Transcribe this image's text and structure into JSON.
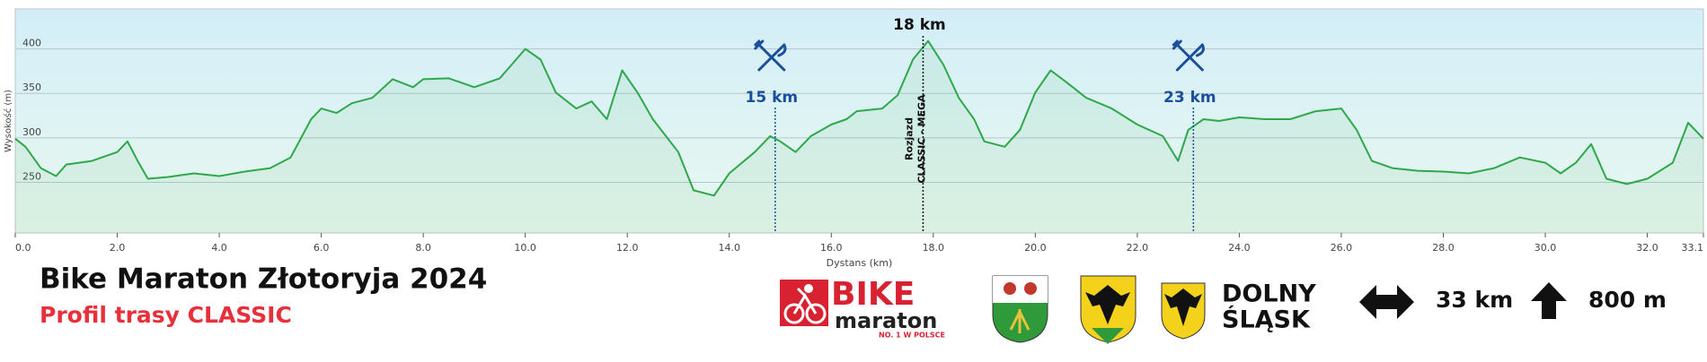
{
  "chart_data": {
    "type": "area",
    "title": "Bike Maraton Złotoryja 2024",
    "subtitle": "Profil trasy CLASSIC",
    "xlabel": "Dystans (km)",
    "ylabel": "Wysokość (m)",
    "color": "#2ea84a",
    "grid": true,
    "xlim": [
      0,
      33.1
    ],
    "ylim": [
      193,
      445
    ],
    "yticks": [
      250,
      300,
      350,
      400
    ],
    "xticks": [
      {
        "value": 0,
        "label": "0.0"
      },
      {
        "value": 2,
        "label": "2.0"
      },
      {
        "value": 4,
        "label": "4.0"
      },
      {
        "value": 6,
        "label": "6.0"
      },
      {
        "value": 8,
        "label": "8.0"
      },
      {
        "value": 10,
        "label": "10.0"
      },
      {
        "value": 12,
        "label": "12.0"
      },
      {
        "value": 14,
        "label": "14.0"
      },
      {
        "value": 16,
        "label": "16.0"
      },
      {
        "value": 18,
        "label": "18.0"
      },
      {
        "value": 20,
        "label": "20.0"
      },
      {
        "value": 22,
        "label": "22.0"
      },
      {
        "value": 24,
        "label": "24.0"
      },
      {
        "value": 26,
        "label": "26.0"
      },
      {
        "value": 28,
        "label": "28.0"
      },
      {
        "value": 30,
        "label": "30.0"
      },
      {
        "value": 32,
        "label": "32.0"
      },
      33.1
    ],
    "x": [
      0,
      0.2,
      0.5,
      0.8,
      1.0,
      1.5,
      2.0,
      2.2,
      2.4,
      2.6,
      3.0,
      3.5,
      4.0,
      4.5,
      5.0,
      5.4,
      5.8,
      6.0,
      6.3,
      6.6,
      7.0,
      7.4,
      7.8,
      8.0,
      8.5,
      9.0,
      9.5,
      10.0,
      10.3,
      10.6,
      11.0,
      11.3,
      11.6,
      11.9,
      12.2,
      12.5,
      13.0,
      13.3,
      13.7,
      14.0,
      14.5,
      14.8,
      15.0,
      15.3,
      15.6,
      16.0,
      16.3,
      16.5,
      17.0,
      17.3,
      17.6,
      17.9,
      18.2,
      18.5,
      18.8,
      19.0,
      19.4,
      19.7,
      20.0,
      20.3,
      20.6,
      21.0,
      21.5,
      22.0,
      22.5,
      22.8,
      23.0,
      23.3,
      23.6,
      24.0,
      24.5,
      25.0,
      25.5,
      26.0,
      26.3,
      26.6,
      27.0,
      27.5,
      28.0,
      28.5,
      29.0,
      29.5,
      30.0,
      30.3,
      30.6,
      30.9,
      31.2,
      31.6,
      32.0,
      32.5,
      32.8,
      33.1
    ],
    "values": [
      299,
      290,
      266,
      257,
      270,
      274,
      284,
      296,
      274,
      254,
      256,
      260,
      257,
      262,
      266,
      278,
      321,
      333,
      328,
      339,
      345,
      366,
      357,
      366,
      367,
      357,
      367,
      400,
      388,
      351,
      333,
      341,
      321,
      376,
      351,
      321,
      284,
      241,
      235,
      260,
      284,
      302,
      296,
      284,
      302,
      315,
      321,
      330,
      333,
      348,
      388,
      409,
      382,
      345,
      321,
      296,
      290,
      309,
      351,
      376,
      363,
      345,
      333,
      315,
      302,
      274,
      309,
      321,
      319,
      323,
      321,
      321,
      330,
      333,
      309,
      274,
      266,
      263,
      262,
      260,
      266,
      278,
      272,
      260,
      272,
      293,
      254,
      248,
      254,
      272,
      317,
      299
    ],
    "markers": [
      {
        "x": 14.9,
        "label": "15 km",
        "icon": "food",
        "color": "#1a4f9c"
      },
      {
        "x": 17.8,
        "label": "18 km",
        "color": "#111111",
        "note": [
          "Rozjazd",
          "CLASSIC - MEGA"
        ]
      },
      {
        "x": 23.1,
        "label": "23 km",
        "icon": "food",
        "color": "#1a4f9c"
      }
    ]
  },
  "branding": {
    "bike": "BIKE",
    "maraton": "maraton",
    "slogan": "NO. 1 W POLSCE",
    "region": [
      "DOLNY",
      "ŚLĄSK"
    ]
  },
  "stats": {
    "distance": "33 km",
    "climb": "800 m"
  }
}
